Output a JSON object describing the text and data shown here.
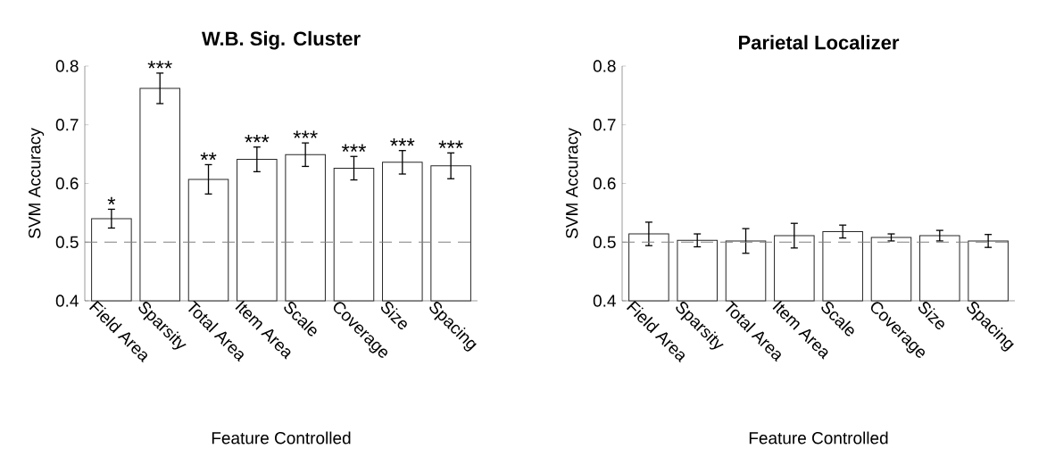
{
  "chart_data": [
    {
      "type": "bar",
      "title": "W.B. Sig. Cluster",
      "xlabel": "Feature Controlled",
      "ylabel": "SVM Accuracy",
      "categories": [
        "Field Area",
        "Sparsity",
        "Total Area",
        "Item Area",
        "Scale",
        "Coverage",
        "Size",
        "Spacing"
      ],
      "values": [
        0.54,
        0.762,
        0.607,
        0.641,
        0.649,
        0.626,
        0.636,
        0.63
      ],
      "errors": [
        0.016,
        0.026,
        0.025,
        0.021,
        0.02,
        0.02,
        0.02,
        0.022
      ],
      "color": "#ffffff",
      "ylim": [
        0.4,
        0.8
      ],
      "yticks": [
        0.4,
        0.5,
        0.6,
        0.7,
        0.8
      ],
      "grid": false,
      "ref_lines": [
        {
          "axis": "y",
          "value": 0.5,
          "color": "#808080",
          "line_style": "dashed"
        }
      ],
      "annotations": [
        "*",
        "***",
        "**",
        "***",
        "***",
        "***",
        "***",
        "***"
      ]
    },
    {
      "type": "bar",
      "title": "Parietal Localizer",
      "xlabel": "Feature Controlled",
      "ylabel": "SVM Accuracy",
      "categories": [
        "Field Area",
        "Sparsity",
        "Total Area",
        "Item Area",
        "Scale",
        "Coverage",
        "Size",
        "Spacing"
      ],
      "values": [
        0.514,
        0.503,
        0.502,
        0.511,
        0.518,
        0.508,
        0.511,
        0.502
      ],
      "errors": [
        0.02,
        0.011,
        0.021,
        0.021,
        0.011,
        0.006,
        0.009,
        0.011
      ],
      "color": "#ffffff",
      "ylim": [
        0.4,
        0.8
      ],
      "yticks": [
        0.4,
        0.5,
        0.6,
        0.7,
        0.8
      ],
      "grid": false,
      "ref_lines": [
        {
          "axis": "y",
          "value": 0.5,
          "color": "#808080",
          "line_style": "dashed"
        }
      ]
    }
  ]
}
